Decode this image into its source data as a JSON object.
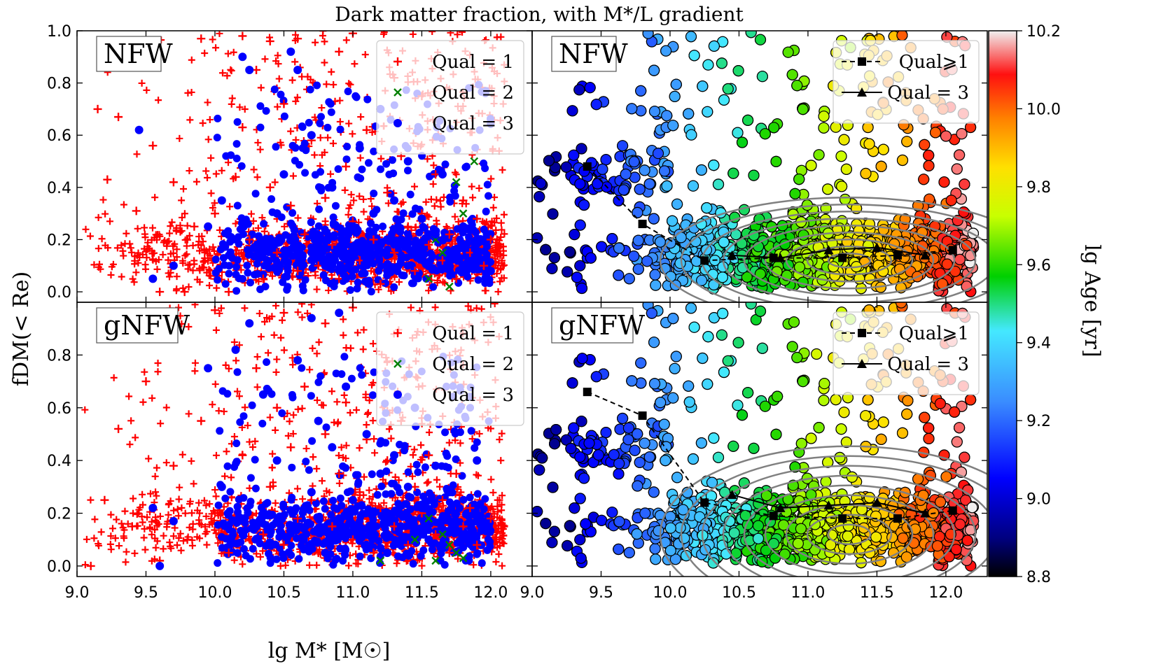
{
  "figure": {
    "title": "Dark matter fraction, with M*/L gradient",
    "xlabel": "lg M* [M☉]",
    "ylabel": "fDM(< Re)",
    "colorbar_label": "lg Age [yr]"
  },
  "chart_data": [
    {
      "id": "nfw-scatter",
      "type": "scatter",
      "panel_label": "NFW",
      "xlim": [
        9.0,
        12.3
      ],
      "ylim": [
        -0.04,
        1.0
      ],
      "xticks": [
        "9.0",
        "9.5",
        "10.0",
        "10.5",
        "11.0",
        "11.5",
        "12.0"
      ],
      "yticks": [
        "0.0",
        "0.2",
        "0.4",
        "0.6",
        "0.8",
        "1.0"
      ],
      "legend_position": "top-right",
      "series": [
        {
          "name": "Qual = 1",
          "marker": "plus",
          "color": "#ff0000",
          "points": [
            [
              9.15,
              0.7
            ],
            [
              9.22,
              0.43
            ],
            [
              9.3,
              0.67
            ],
            [
              9.43,
              0.31
            ],
            [
              9.55,
              0.56
            ],
            [
              9.6,
              0.0
            ],
            [
              9.7,
              0.42
            ],
            [
              9.78,
              0.0
            ],
            [
              9.85,
              0.25
            ],
            [
              9.95,
              0.12
            ],
            [
              10.0,
              0.3
            ],
            [
              10.1,
              0.0
            ],
            [
              10.15,
              0.44
            ],
            [
              10.2,
              0.63
            ],
            [
              10.25,
              0.2
            ],
            [
              10.3,
              0.85
            ],
            [
              10.35,
              0.05
            ],
            [
              10.4,
              0.4
            ],
            [
              10.45,
              0.15
            ],
            [
              10.5,
              0.72
            ],
            [
              10.55,
              0.33
            ],
            [
              10.6,
              0.08
            ],
            [
              10.65,
              0.22
            ],
            [
              10.7,
              0.58
            ],
            [
              10.75,
              0.1
            ],
            [
              10.8,
              0.36
            ],
            [
              10.85,
              0.18
            ],
            [
              10.9,
              0.05
            ],
            [
              10.95,
              0.48
            ],
            [
              11.0,
              0.27
            ],
            [
              11.05,
              0.12
            ],
            [
              11.1,
              0.62
            ],
            [
              11.15,
              0.2
            ],
            [
              11.2,
              0.03
            ],
            [
              11.25,
              0.38
            ],
            [
              11.3,
              0.15
            ],
            [
              11.35,
              0.52
            ],
            [
              11.4,
              0.25
            ],
            [
              11.45,
              0.08
            ],
            [
              11.5,
              0.3
            ],
            [
              11.55,
              0.18
            ],
            [
              11.6,
              0.45
            ],
            [
              11.65,
              0.12
            ],
            [
              11.7,
              0.22
            ],
            [
              11.75,
              0.05
            ],
            [
              11.8,
              0.35
            ],
            [
              11.85,
              0.15
            ],
            [
              11.9,
              0.28
            ],
            [
              11.95,
              0.1
            ],
            [
              12.0,
              0.2
            ],
            [
              10.2,
              0.98
            ],
            [
              10.6,
              0.97
            ],
            [
              11.0,
              0.99
            ],
            [
              10.4,
              0.96
            ],
            [
              9.9,
              0.97
            ],
            [
              10.9,
              0.92
            ],
            [
              11.3,
              0.82
            ],
            [
              11.5,
              0.75
            ]
          ]
        },
        {
          "name": "Qual = 2",
          "marker": "x",
          "color": "#008000",
          "points": [
            [
              11.75,
              0.42
            ],
            [
              11.88,
              0.5
            ],
            [
              11.65,
              0.15
            ],
            [
              11.55,
              0.05
            ],
            [
              11.7,
              0.02
            ],
            [
              11.6,
              0.2
            ],
            [
              11.8,
              0.3
            ]
          ]
        },
        {
          "name": "Qual = 3",
          "marker": "circle",
          "color": "#0000ff",
          "points": [
            [
              9.45,
              0.62
            ],
            [
              9.55,
              0.05
            ],
            [
              9.7,
              0.1
            ],
            [
              9.95,
              0.25
            ],
            [
              10.05,
              0.35
            ],
            [
              10.2,
              0.9
            ],
            [
              10.25,
              0.85
            ],
            [
              10.35,
              0.15
            ],
            [
              10.45,
              0.3
            ],
            [
              10.55,
              0.92
            ],
            [
              10.6,
              0.85
            ],
            [
              10.7,
              0.6
            ],
            [
              10.75,
              0.2
            ],
            [
              10.8,
              0.1
            ],
            [
              10.85,
              0.4
            ],
            [
              10.9,
              0.15
            ],
            [
              10.95,
              0.05
            ],
            [
              11.0,
              0.25
            ],
            [
              11.05,
              0.55
            ],
            [
              11.1,
              0.12
            ],
            [
              11.15,
              0.3
            ],
            [
              11.2,
              0.18
            ],
            [
              11.25,
              0.08
            ],
            [
              11.3,
              0.35
            ],
            [
              11.35,
              0.2
            ],
            [
              11.4,
              0.5
            ],
            [
              11.45,
              0.15
            ],
            [
              11.5,
              0.28
            ],
            [
              11.55,
              0.1
            ],
            [
              11.6,
              0.22
            ],
            [
              11.65,
              0.45
            ],
            [
              11.7,
              0.12
            ],
            [
              11.8,
              0.25
            ],
            [
              11.9,
              0.15
            ],
            [
              12.0,
              0.08
            ],
            [
              11.2,
              0.7
            ],
            [
              10.5,
              0.45
            ]
          ]
        }
      ]
    },
    {
      "id": "nfw-age",
      "type": "scatter",
      "panel_label": "NFW",
      "xlim": [
        9.0,
        12.3
      ],
      "ylim": [
        -0.04,
        1.0
      ],
      "xticks": [
        "9.0",
        "9.5",
        "10.0",
        "10.5",
        "11.0",
        "11.5",
        "12.0"
      ],
      "legend_position": "top-right",
      "colorbar": {
        "range": [
          8.8,
          10.2
        ],
        "ticks": [
          "8.8",
          "9.0",
          "9.2",
          "9.4",
          "9.6",
          "9.8",
          "10.0",
          "10.2"
        ]
      },
      "series": [
        {
          "name": "Qual⩾1",
          "style": "dashed-square",
          "color": "#000000",
          "x": [
            9.4,
            9.8,
            10.25,
            10.75,
            11.25,
            11.65,
            12.05
          ],
          "y": [
            0.48,
            0.26,
            0.12,
            0.13,
            0.13,
            0.14,
            0.16
          ]
        },
        {
          "name": "Qual = 3",
          "style": "solid-triangle",
          "color": "#000000",
          "x": [
            10.45,
            10.8,
            11.15,
            11.5,
            11.85
          ],
          "y": [
            0.14,
            0.13,
            0.16,
            0.17,
            0.14
          ]
        }
      ]
    },
    {
      "id": "gnfw-scatter",
      "type": "scatter",
      "panel_label": "gNFW",
      "xlim": [
        9.0,
        12.3
      ],
      "ylim": [
        -0.04,
        1.0
      ],
      "xticks": [
        "9.0",
        "9.5",
        "10.0",
        "10.5",
        "11.0",
        "11.5",
        "12.0"
      ],
      "yticks": [
        "0.0",
        "0.2",
        "0.4",
        "0.6",
        "0.8"
      ],
      "legend_position": "top-right",
      "series": [
        {
          "name": "Qual = 1",
          "marker": "plus",
          "color": "#ff0000",
          "points": [
            [
              9.1,
              0.0
            ],
            [
              9.2,
              0.25
            ],
            [
              9.3,
              0.52
            ],
            [
              9.4,
              0.15
            ],
            [
              9.5,
              0.7
            ],
            [
              9.6,
              0.02
            ],
            [
              9.7,
              0.38
            ],
            [
              9.8,
              0.1
            ],
            [
              9.9,
              0.55
            ],
            [
              10.0,
              0.2
            ],
            [
              10.1,
              0.05
            ],
            [
              10.2,
              0.42
            ],
            [
              10.3,
              0.75
            ],
            [
              10.35,
              0.12
            ],
            [
              10.4,
              0.3
            ],
            [
              10.45,
              0.6
            ],
            [
              10.5,
              0.08
            ],
            [
              10.55,
              0.45
            ],
            [
              10.6,
              0.18
            ],
            [
              10.65,
              0.68
            ],
            [
              10.7,
              0.25
            ],
            [
              10.75,
              0.05
            ],
            [
              10.8,
              0.5
            ],
            [
              10.85,
              0.15
            ],
            [
              10.9,
              0.35
            ],
            [
              10.95,
              0.62
            ],
            [
              11.0,
              0.1
            ],
            [
              11.05,
              0.28
            ],
            [
              11.1,
              0.48
            ],
            [
              11.15,
              0.05
            ],
            [
              11.2,
              0.22
            ],
            [
              11.25,
              0.4
            ],
            [
              11.3,
              0.15
            ],
            [
              11.35,
              0.55
            ],
            [
              11.4,
              0.08
            ],
            [
              11.45,
              0.3
            ],
            [
              11.5,
              0.2
            ],
            [
              11.55,
              0.42
            ],
            [
              11.6,
              0.12
            ],
            [
              11.65,
              0.25
            ],
            [
              11.7,
              0.05
            ],
            [
              11.75,
              0.35
            ],
            [
              11.8,
              0.15
            ],
            [
              11.85,
              0.22
            ],
            [
              11.9,
              0.08
            ],
            [
              12.0,
              0.18
            ],
            [
              10.0,
              0.97
            ],
            [
              10.5,
              0.96
            ],
            [
              11.0,
              0.98
            ],
            [
              10.8,
              0.92
            ]
          ]
        },
        {
          "name": "Qual = 2",
          "marker": "x",
          "color": "#008000",
          "points": [
            [
              11.6,
              0.02
            ],
            [
              11.75,
              0.05
            ],
            [
              11.8,
              0.03
            ],
            [
              11.65,
              0.12
            ],
            [
              11.55,
              0.18
            ],
            [
              11.7,
              0.08
            ],
            [
              11.45,
              0.1
            ],
            [
              11.2,
              0.02
            ]
          ]
        },
        {
          "name": "Qual = 3",
          "marker": "circle",
          "color": "#0000ff",
          "points": [
            [
              9.55,
              0.22
            ],
            [
              9.6,
              0.0
            ],
            [
              9.7,
              0.17
            ],
            [
              9.95,
              0.75
            ],
            [
              10.05,
              0.3
            ],
            [
              10.15,
              0.82
            ],
            [
              10.25,
              0.92
            ],
            [
              10.35,
              0.65
            ],
            [
              10.45,
              0.4
            ],
            [
              10.55,
              0.15
            ],
            [
              10.6,
              0.78
            ],
            [
              10.7,
              0.28
            ],
            [
              10.75,
              0.55
            ],
            [
              10.8,
              0.05
            ],
            [
              10.85,
              0.45
            ],
            [
              10.9,
              0.18
            ],
            [
              10.95,
              0.68
            ],
            [
              11.0,
              0.25
            ],
            [
              11.05,
              0.1
            ],
            [
              11.1,
              0.5
            ],
            [
              11.15,
              0.2
            ],
            [
              11.2,
              0.35
            ],
            [
              11.25,
              0.05
            ],
            [
              11.3,
              0.42
            ],
            [
              11.35,
              0.15
            ],
            [
              11.4,
              0.3
            ],
            [
              11.45,
              0.6
            ],
            [
              11.5,
              0.22
            ],
            [
              11.55,
              0.1
            ],
            [
              11.6,
              0.38
            ],
            [
              11.65,
              0.18
            ],
            [
              11.7,
              0.28
            ],
            [
              11.8,
              0.12
            ],
            [
              11.9,
              0.4
            ],
            [
              10.9,
              0.96
            ],
            [
              10.7,
              0.94
            ]
          ]
        }
      ]
    },
    {
      "id": "gnfw-age",
      "type": "scatter",
      "panel_label": "gNFW",
      "xlim": [
        9.0,
        12.3
      ],
      "ylim": [
        -0.04,
        1.0
      ],
      "xticks": [
        "9.0",
        "9.5",
        "10.0",
        "10.5",
        "11.0",
        "11.5",
        "12.0"
      ],
      "legend_position": "top-right",
      "colorbar": {
        "range": [
          8.8,
          10.2
        ],
        "ticks": [
          "8.8",
          "9.0",
          "9.2",
          "9.4",
          "9.6",
          "9.8",
          "10.0",
          "10.2"
        ]
      },
      "series": [
        {
          "name": "Qual⩾1",
          "style": "dashed-square",
          "color": "#000000",
          "x": [
            9.4,
            9.8,
            10.25,
            10.75,
            11.25,
            11.65,
            12.05
          ],
          "y": [
            0.66,
            0.57,
            0.24,
            0.19,
            0.18,
            0.18,
            0.21
          ]
        },
        {
          "name": "Qual = 3",
          "style": "solid-triangle",
          "color": "#000000",
          "x": [
            10.45,
            10.8,
            11.15,
            11.5,
            11.85
          ],
          "y": [
            0.27,
            0.22,
            0.23,
            0.24,
            0.2
          ]
        }
      ]
    }
  ]
}
